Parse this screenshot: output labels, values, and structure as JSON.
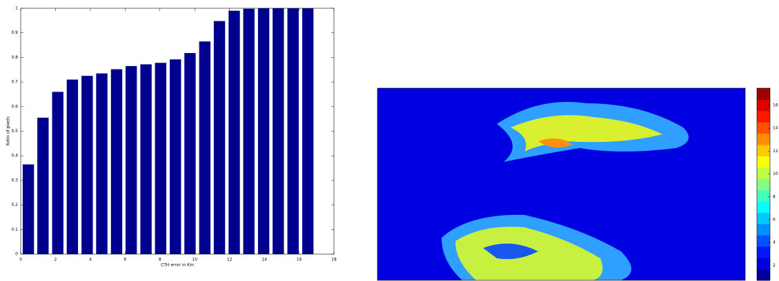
{
  "chart_data": [
    {
      "type": "bar",
      "xlabel": "CTH error in Km",
      "ylabel": "Ratio of pixels",
      "x": [
        0.44,
        1.28,
        2.13,
        2.97,
        3.82,
        4.66,
        5.51,
        6.35,
        7.2,
        8.04,
        8.89,
        9.73,
        10.58,
        11.42,
        12.27,
        13.11,
        13.96,
        14.8,
        15.65,
        16.5
      ],
      "values": [
        0.365,
        0.555,
        0.66,
        0.71,
        0.725,
        0.735,
        0.752,
        0.765,
        0.772,
        0.778,
        0.792,
        0.818,
        0.865,
        0.948,
        0.99,
        0.998,
        1,
        1,
        1,
        1
      ],
      "color": "#00008f",
      "xlim": [
        0,
        18
      ],
      "xticks": [
        0,
        2,
        4,
        6,
        8,
        10,
        12,
        14,
        16,
        18
      ],
      "ylim": [
        0,
        1
      ],
      "yticks": [
        0,
        0.1,
        0.2,
        0.3,
        0.4,
        0.5,
        0.6,
        0.7,
        0.8,
        0.9,
        1
      ]
    },
    {
      "type": "heatmap",
      "colormap": "jet",
      "clim": [
        0.7,
        17.5
      ],
      "cticks": [
        2,
        4,
        6,
        8,
        10,
        12,
        14,
        16
      ]
    }
  ]
}
